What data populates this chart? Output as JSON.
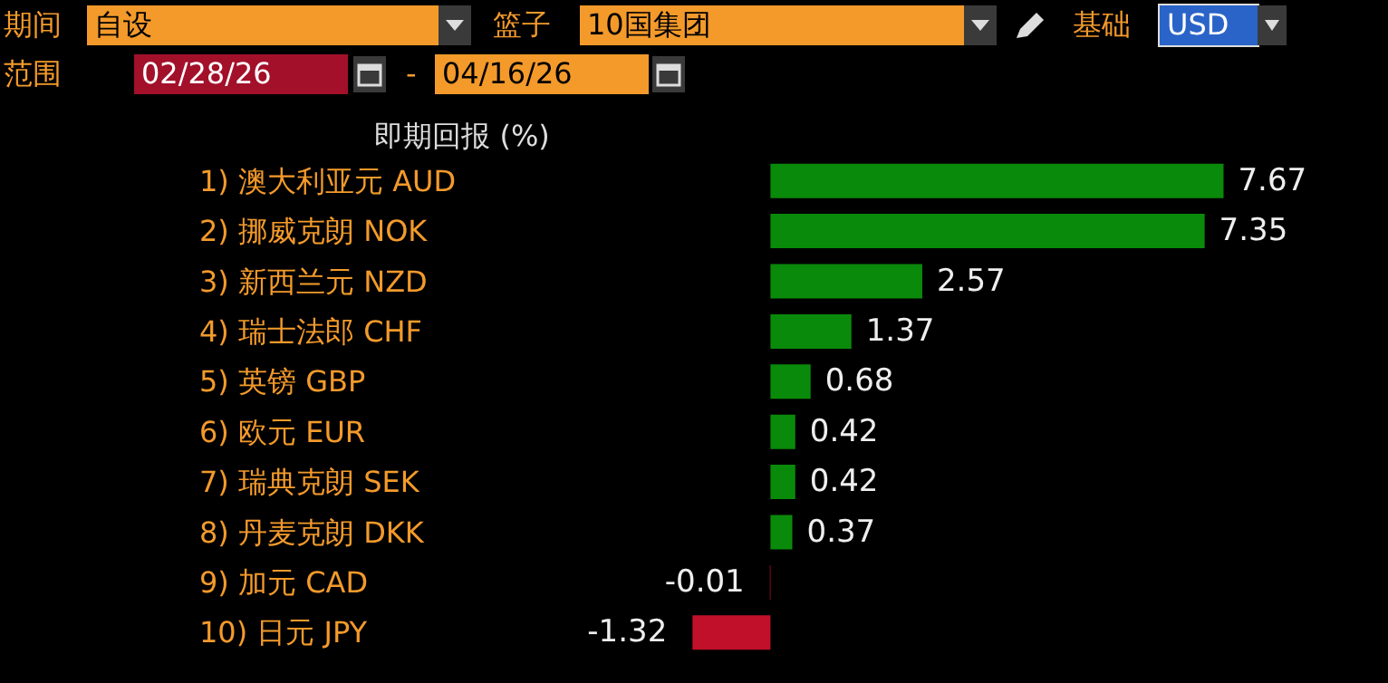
{
  "chart_data": {
    "type": "bar",
    "orientation": "horizontal",
    "title": "即期回报 (%)",
    "categories": [
      "1) 澳大利亚元 AUD",
      "2) 挪威克朗 NOK",
      "3) 新西兰元 NZD",
      "4) 瑞士法郎 CHF",
      "5) 英镑 GBP",
      "6) 欧元 EUR",
      "7) 瑞典克朗 SEK",
      "8) 丹麦克朗 DKK",
      "9) 加元 CAD",
      "10) 日元 JPY"
    ],
    "values": [
      7.67,
      7.35,
      2.57,
      1.37,
      0.68,
      0.42,
      0.42,
      0.37,
      -0.01,
      -1.32
    ],
    "colors": [
      "#0a8a0a",
      "#0a8a0a",
      "#0a8a0a",
      "#0a8a0a",
      "#0a8a0a",
      "#0a8a0a",
      "#0a8a0a",
      "#0a8a0a",
      "#c0102a",
      "#c0102a"
    ],
    "data_labels": true,
    "grid": false,
    "annotations": [
      "期间",
      "自设",
      "篮子",
      "10国集团",
      "基础",
      "USD",
      "范围",
      "02/28/26",
      "-",
      "04/16/26"
    ]
  }
}
